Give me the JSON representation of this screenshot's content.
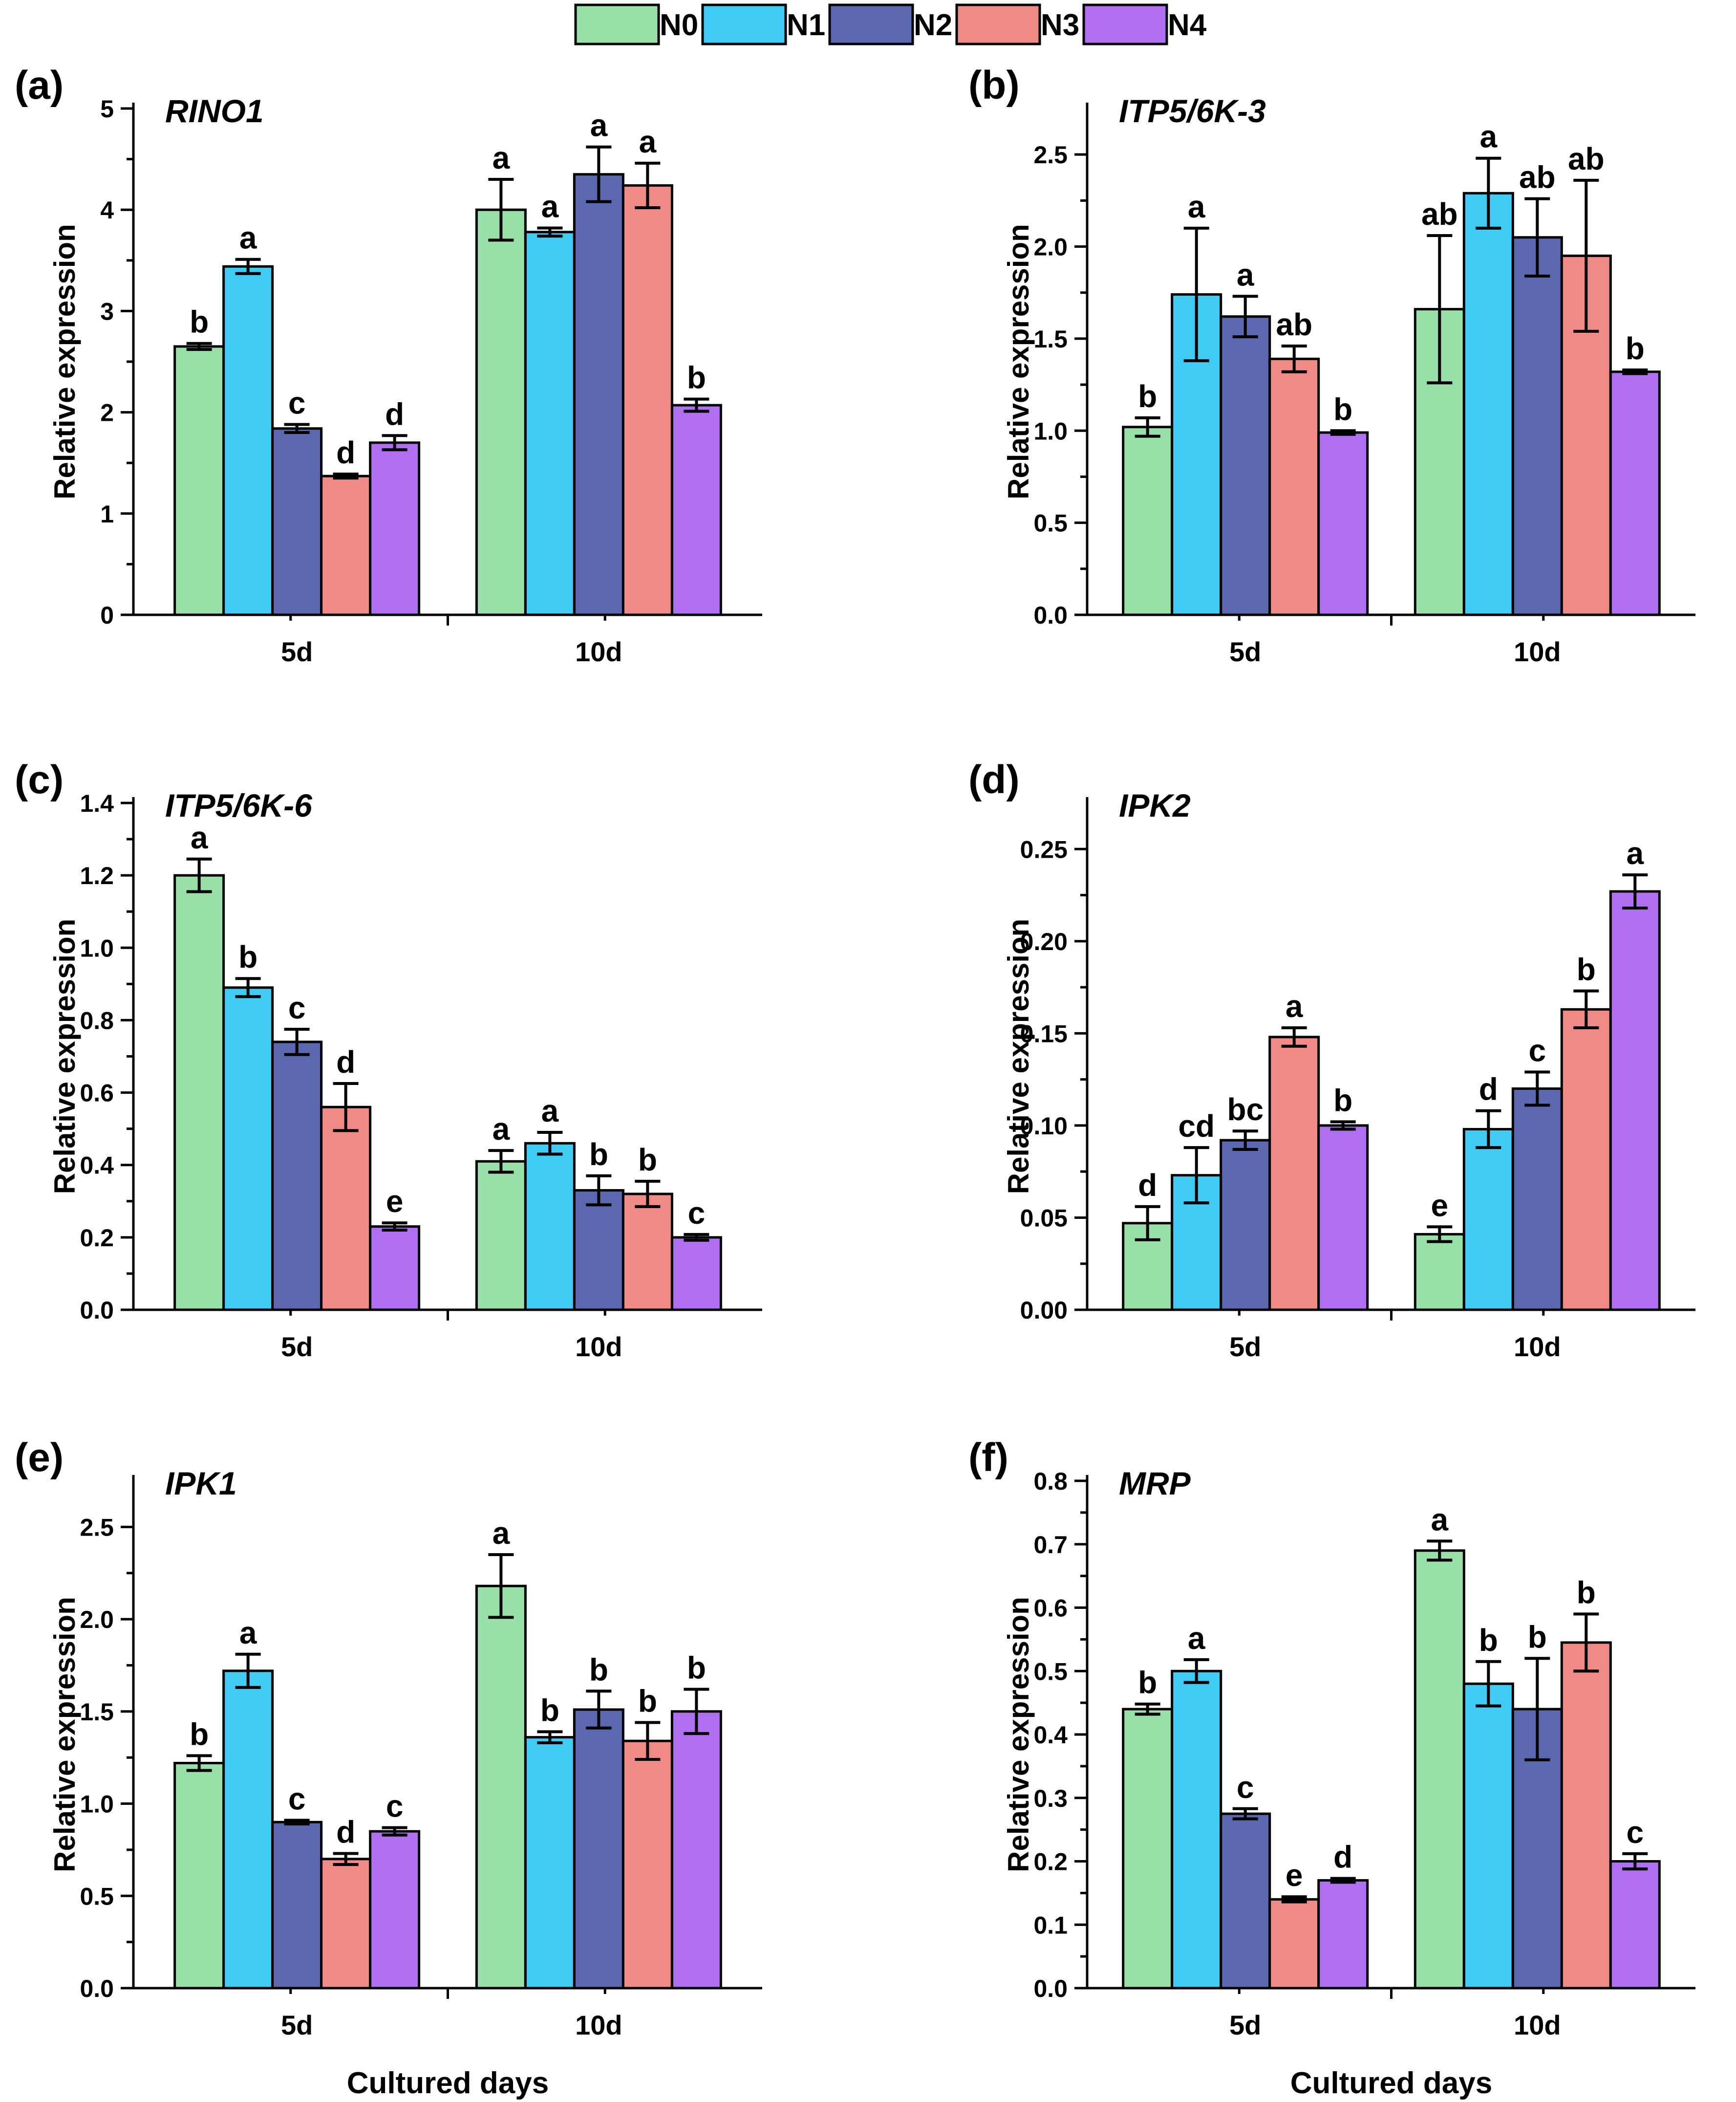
{
  "legend": {
    "entries": [
      {
        "name": "N0",
        "color": "#98e0a8"
      },
      {
        "name": "N1",
        "color": "#3fcbf3"
      },
      {
        "name": "N2",
        "color": "#5b68b0"
      },
      {
        "name": "N3",
        "color": "#f08a86"
      },
      {
        "name": "N4",
        "color": "#b06ef0"
      }
    ]
  },
  "chart_data": [
    {
      "type": "bar",
      "panel": "(a)",
      "title": "RINO1",
      "xlabel": "",
      "ylabel": "Relative expression",
      "categories": [
        "5d",
        "10d"
      ],
      "ylim": [
        0,
        5
      ],
      "yticks": [
        "0",
        "1",
        "2",
        "3",
        "4",
        "5"
      ],
      "series": [
        {
          "name": "N0",
          "values": [
            2.65,
            4.0
          ],
          "errors": [
            0.03,
            0.3
          ],
          "letters": [
            "b",
            "a"
          ]
        },
        {
          "name": "N1",
          "values": [
            3.44,
            3.78
          ],
          "errors": [
            0.07,
            0.04
          ],
          "letters": [
            "a",
            "a"
          ]
        },
        {
          "name": "N2",
          "values": [
            1.84,
            4.35
          ],
          "errors": [
            0.04,
            0.27
          ],
          "letters": [
            "c",
            "a"
          ]
        },
        {
          "name": "N3",
          "values": [
            1.37,
            4.24
          ],
          "errors": [
            0.02,
            0.22
          ],
          "letters": [
            "d",
            "a"
          ]
        },
        {
          "name": "N4",
          "values": [
            1.7,
            2.07
          ],
          "errors": [
            0.07,
            0.06
          ],
          "letters": [
            "d",
            "b"
          ]
        }
      ]
    },
    {
      "type": "bar",
      "panel": "(b)",
      "title": "ITP5/6K-3",
      "xlabel": "",
      "ylabel": "Relative expression",
      "categories": [
        "5d",
        "10d"
      ],
      "ylim": [
        0,
        2.75
      ],
      "yticks": [
        "0.0",
        "0.5",
        "1.0",
        "1.5",
        "2.0",
        "2.5"
      ],
      "series": [
        {
          "name": "N0",
          "values": [
            1.02,
            1.66
          ],
          "errors": [
            0.05,
            0.4
          ],
          "letters": [
            "b",
            "ab"
          ]
        },
        {
          "name": "N1",
          "values": [
            1.74,
            2.29
          ],
          "errors": [
            0.36,
            0.19
          ],
          "letters": [
            "a",
            "a"
          ]
        },
        {
          "name": "N2",
          "values": [
            1.62,
            2.05
          ],
          "errors": [
            0.11,
            0.21
          ],
          "letters": [
            "a",
            "ab"
          ]
        },
        {
          "name": "N3",
          "values": [
            1.39,
            1.95
          ],
          "errors": [
            0.07,
            0.41
          ],
          "letters": [
            "ab",
            "ab"
          ]
        },
        {
          "name": "N4",
          "values": [
            0.99,
            1.32
          ],
          "errors": [
            0.01,
            0.01
          ],
          "letters": [
            "b",
            "b"
          ]
        }
      ]
    },
    {
      "type": "bar",
      "panel": "(c)",
      "title": "ITP5/6K-6",
      "xlabel": "",
      "ylabel": "Relative expression",
      "categories": [
        "5d",
        "10d"
      ],
      "ylim": [
        0,
        1.4
      ],
      "yticks": [
        "0.0",
        "0.2",
        "0.4",
        "0.6",
        "0.8",
        "1.0",
        "1.2",
        "1.4"
      ],
      "series": [
        {
          "name": "N0",
          "values": [
            1.2,
            0.41
          ],
          "errors": [
            0.045,
            0.03
          ],
          "letters": [
            "a",
            "a"
          ]
        },
        {
          "name": "N1",
          "values": [
            0.89,
            0.46
          ],
          "errors": [
            0.025,
            0.03
          ],
          "letters": [
            "b",
            "a"
          ]
        },
        {
          "name": "N2",
          "values": [
            0.74,
            0.33
          ],
          "errors": [
            0.035,
            0.04
          ],
          "letters": [
            "c",
            "b"
          ]
        },
        {
          "name": "N3",
          "values": [
            0.56,
            0.32
          ],
          "errors": [
            0.065,
            0.035
          ],
          "letters": [
            "d",
            "b"
          ]
        },
        {
          "name": "N4",
          "values": [
            0.23,
            0.2
          ],
          "errors": [
            0.01,
            0.008
          ],
          "letters": [
            "e",
            "c"
          ]
        }
      ]
    },
    {
      "type": "bar",
      "panel": "(d)",
      "title": "IPK2",
      "xlabel": "",
      "ylabel": "Relative expression",
      "categories": [
        "5d",
        "10d"
      ],
      "ylim": [
        0,
        0.275
      ],
      "yticks": [
        "0.00",
        "0.05",
        "0.10",
        "0.15",
        "0.20",
        "0.25"
      ],
      "series": [
        {
          "name": "N0",
          "values": [
            0.047,
            0.041
          ],
          "errors": [
            0.009,
            0.004
          ],
          "letters": [
            "d",
            "e"
          ]
        },
        {
          "name": "N1",
          "values": [
            0.073,
            0.098
          ],
          "errors": [
            0.015,
            0.01
          ],
          "letters": [
            "cd",
            "d"
          ]
        },
        {
          "name": "N2",
          "values": [
            0.092,
            0.12
          ],
          "errors": [
            0.005,
            0.009
          ],
          "letters": [
            "bc",
            "c"
          ]
        },
        {
          "name": "N3",
          "values": [
            0.148,
            0.163
          ],
          "errors": [
            0.005,
            0.01
          ],
          "letters": [
            "a",
            "b"
          ]
        },
        {
          "name": "N4",
          "values": [
            0.1,
            0.227
          ],
          "errors": [
            0.002,
            0.009
          ],
          "letters": [
            "b",
            "a"
          ]
        }
      ]
    },
    {
      "type": "bar",
      "panel": "(e)",
      "title": "IPK1",
      "xlabel": "Cultured days",
      "ylabel": "Relative expression",
      "categories": [
        "5d",
        "10d"
      ],
      "ylim": [
        0,
        2.75
      ],
      "yticks": [
        "0.0",
        "0.5",
        "1.0",
        "1.5",
        "2.0",
        "2.5"
      ],
      "series": [
        {
          "name": "N0",
          "values": [
            1.22,
            2.18
          ],
          "errors": [
            0.04,
            0.17
          ],
          "letters": [
            "b",
            "a"
          ]
        },
        {
          "name": "N1",
          "values": [
            1.72,
            1.36
          ],
          "errors": [
            0.09,
            0.03
          ],
          "letters": [
            "a",
            "b"
          ]
        },
        {
          "name": "N2",
          "values": [
            0.9,
            1.51
          ],
          "errors": [
            0.01,
            0.1
          ],
          "letters": [
            "c",
            "b"
          ]
        },
        {
          "name": "N3",
          "values": [
            0.7,
            1.34
          ],
          "errors": [
            0.03,
            0.1
          ],
          "letters": [
            "d",
            "b"
          ]
        },
        {
          "name": "N4",
          "values": [
            0.85,
            1.5
          ],
          "errors": [
            0.02,
            0.12
          ],
          "letters": [
            "c",
            "b"
          ]
        }
      ]
    },
    {
      "type": "bar",
      "panel": "(f)",
      "title": "MRP",
      "xlabel": "Cultured days",
      "ylabel": "Relative expression",
      "categories": [
        "5d",
        "10d"
      ],
      "ylim": [
        0,
        0.8
      ],
      "yticks": [
        "0.0",
        "0.1",
        "0.2",
        "0.3",
        "0.4",
        "0.5",
        "0.6",
        "0.7",
        "0.8"
      ],
      "series": [
        {
          "name": "N0",
          "values": [
            0.44,
            0.69
          ],
          "errors": [
            0.008,
            0.015
          ],
          "letters": [
            "b",
            "a"
          ]
        },
        {
          "name": "N1",
          "values": [
            0.5,
            0.48
          ],
          "errors": [
            0.018,
            0.035
          ],
          "letters": [
            "a",
            "b"
          ]
        },
        {
          "name": "N2",
          "values": [
            0.275,
            0.44
          ],
          "errors": [
            0.008,
            0.08
          ],
          "letters": [
            "c",
            "b"
          ]
        },
        {
          "name": "N3",
          "values": [
            0.14,
            0.545
          ],
          "errors": [
            0.004,
            0.045
          ],
          "letters": [
            "e",
            "b"
          ]
        },
        {
          "name": "N4",
          "values": [
            0.17,
            0.2
          ],
          "errors": [
            0.003,
            0.012
          ],
          "letters": [
            "d",
            "c"
          ]
        }
      ]
    }
  ]
}
